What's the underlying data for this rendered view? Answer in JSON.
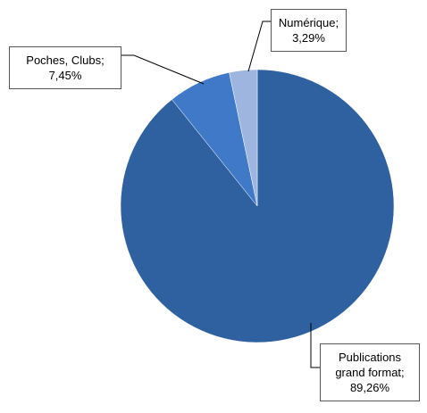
{
  "chart_data": {
    "type": "pie",
    "categories": [
      "Publications grand format;",
      "Poches, Clubs;",
      "Numérique;"
    ],
    "values": [
      89.26,
      7.45,
      3.29
    ],
    "value_labels": [
      "89,26%",
      "7,45%",
      "3,29%"
    ],
    "colors": [
      "#2f609f",
      "#3f79c8",
      "#9db5df"
    ]
  }
}
